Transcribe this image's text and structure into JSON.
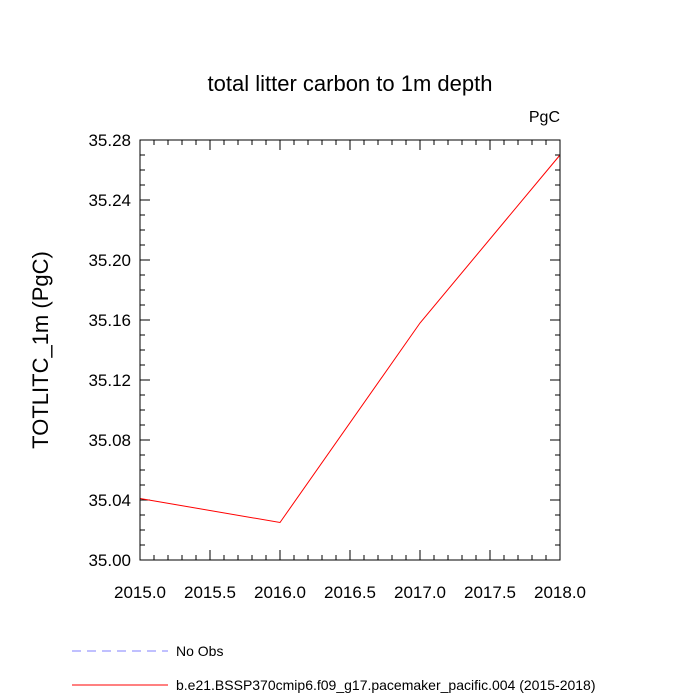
{
  "chart_data": {
    "type": "line",
    "title": "total litter carbon to 1m depth",
    "units_label": "PgC",
    "ylabel": "TOTLITC_1m  (PgC)",
    "xlabel": "",
    "xlim": [
      2015.0,
      2018.0
    ],
    "ylim": [
      35.0,
      35.28
    ],
    "x_ticks": [
      "2015.0",
      "2015.5",
      "2016.0",
      "2016.5",
      "2017.0",
      "2017.5",
      "2018.0"
    ],
    "y_ticks": [
      "35.00",
      "35.04",
      "35.08",
      "35.12",
      "35.16",
      "35.20",
      "35.24",
      "35.28"
    ],
    "grid": false,
    "legend_position": "bottom-left, below plot",
    "series": [
      {
        "name": "b.e21.BSSP370cmip6.f09_g17.pacemaker_pacific.004 (2015-2018)",
        "color": "#ff0000",
        "dash": "solid",
        "x": [
          2015.0,
          2016.0,
          2017.0,
          2018.0
        ],
        "y": [
          35.041,
          35.025,
          35.158,
          35.27
        ]
      }
    ],
    "legend": [
      {
        "label": "No Obs",
        "color": "#8080ff",
        "dash": "dashed"
      },
      {
        "label": "b.e21.BSSP370cmip6.f09_g17.pacemaker_pacific.004 (2015-2018)",
        "color": "#ff0000",
        "dash": "solid"
      }
    ]
  }
}
